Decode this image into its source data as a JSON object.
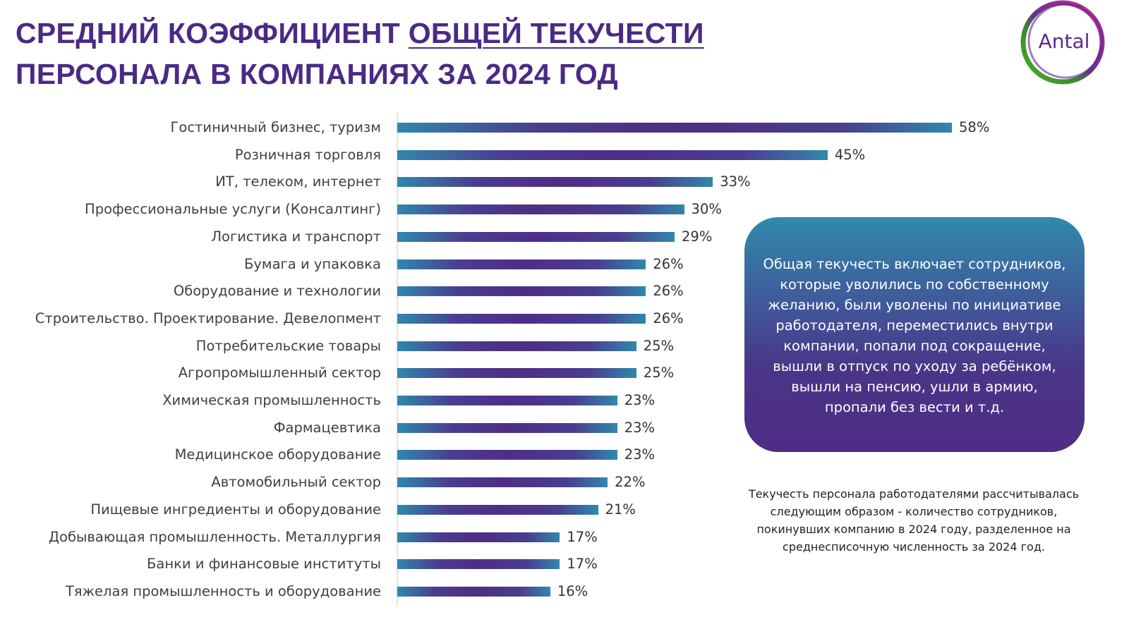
{
  "title": {
    "part1": "СРЕДНИЙ КОЭФФИЦИЕНТ ",
    "underlined": "ОБЩЕЙ ТЕКУЧЕСТИ",
    "line2": "ПЕРСОНАЛА В КОМПАНИЯХ ЗА 2024 ГОД"
  },
  "logo": {
    "text": "Antal"
  },
  "colors": {
    "title": "#4b2a85",
    "bar_teal": "#2f88ac",
    "bar_purple": "#4f2d85"
  },
  "chart_data": {
    "type": "bar",
    "orientation": "horizontal",
    "categories": [
      "Гостиничный бизнес, туризм",
      "Розничная торговля",
      "ИТ, телеком, интернет",
      "Профессиональные услуги (Консалтинг)",
      "Логистика и транспорт",
      "Бумага и упаковка",
      "Оборудование и технологии",
      "Строительство. Проектирование. Девелопмент",
      "Потребительские товары",
      "Агропромышленный сектор",
      "Химическая промышленность",
      "Фармацевтика",
      "Медицинское оборудование",
      "Автомобильный сектор",
      "Пищевые ингредиенты и оборудование",
      "Добывающая промышленность. Металлургия",
      "Банки и финансовые институты",
      "Тяжелая промышленность и оборудование"
    ],
    "values": [
      58,
      45,
      33,
      30,
      29,
      26,
      26,
      26,
      25,
      25,
      23,
      23,
      23,
      22,
      21,
      17,
      17,
      16
    ],
    "labels": [
      "58%",
      "45%",
      "33%",
      "30%",
      "29%",
      "26%",
      "26%",
      "26%",
      "25%",
      "25%",
      "23%",
      "23%",
      "23%",
      "22%",
      "21%",
      "17%",
      "17%",
      "16%"
    ],
    "xlim": [
      0,
      58
    ],
    "grid": false
  },
  "info_box": {
    "text": "Общая текучесть включает сотрудников, которые уволились по собственному желанию, были уволены по инициативе работодателя, переместились внутри компании, попали под сокращение, вышли в отпуск по уходу за ребёнком, вышли на пенсию, ушли в армию, пропали без вести и т.д."
  },
  "footnote": {
    "text": "Текучесть персонала работодателями рассчитывалась следующим образом - количество сотрудников, покинувших компанию в 2024 году, разделенное на среднесписочную численность за 2024 год."
  }
}
